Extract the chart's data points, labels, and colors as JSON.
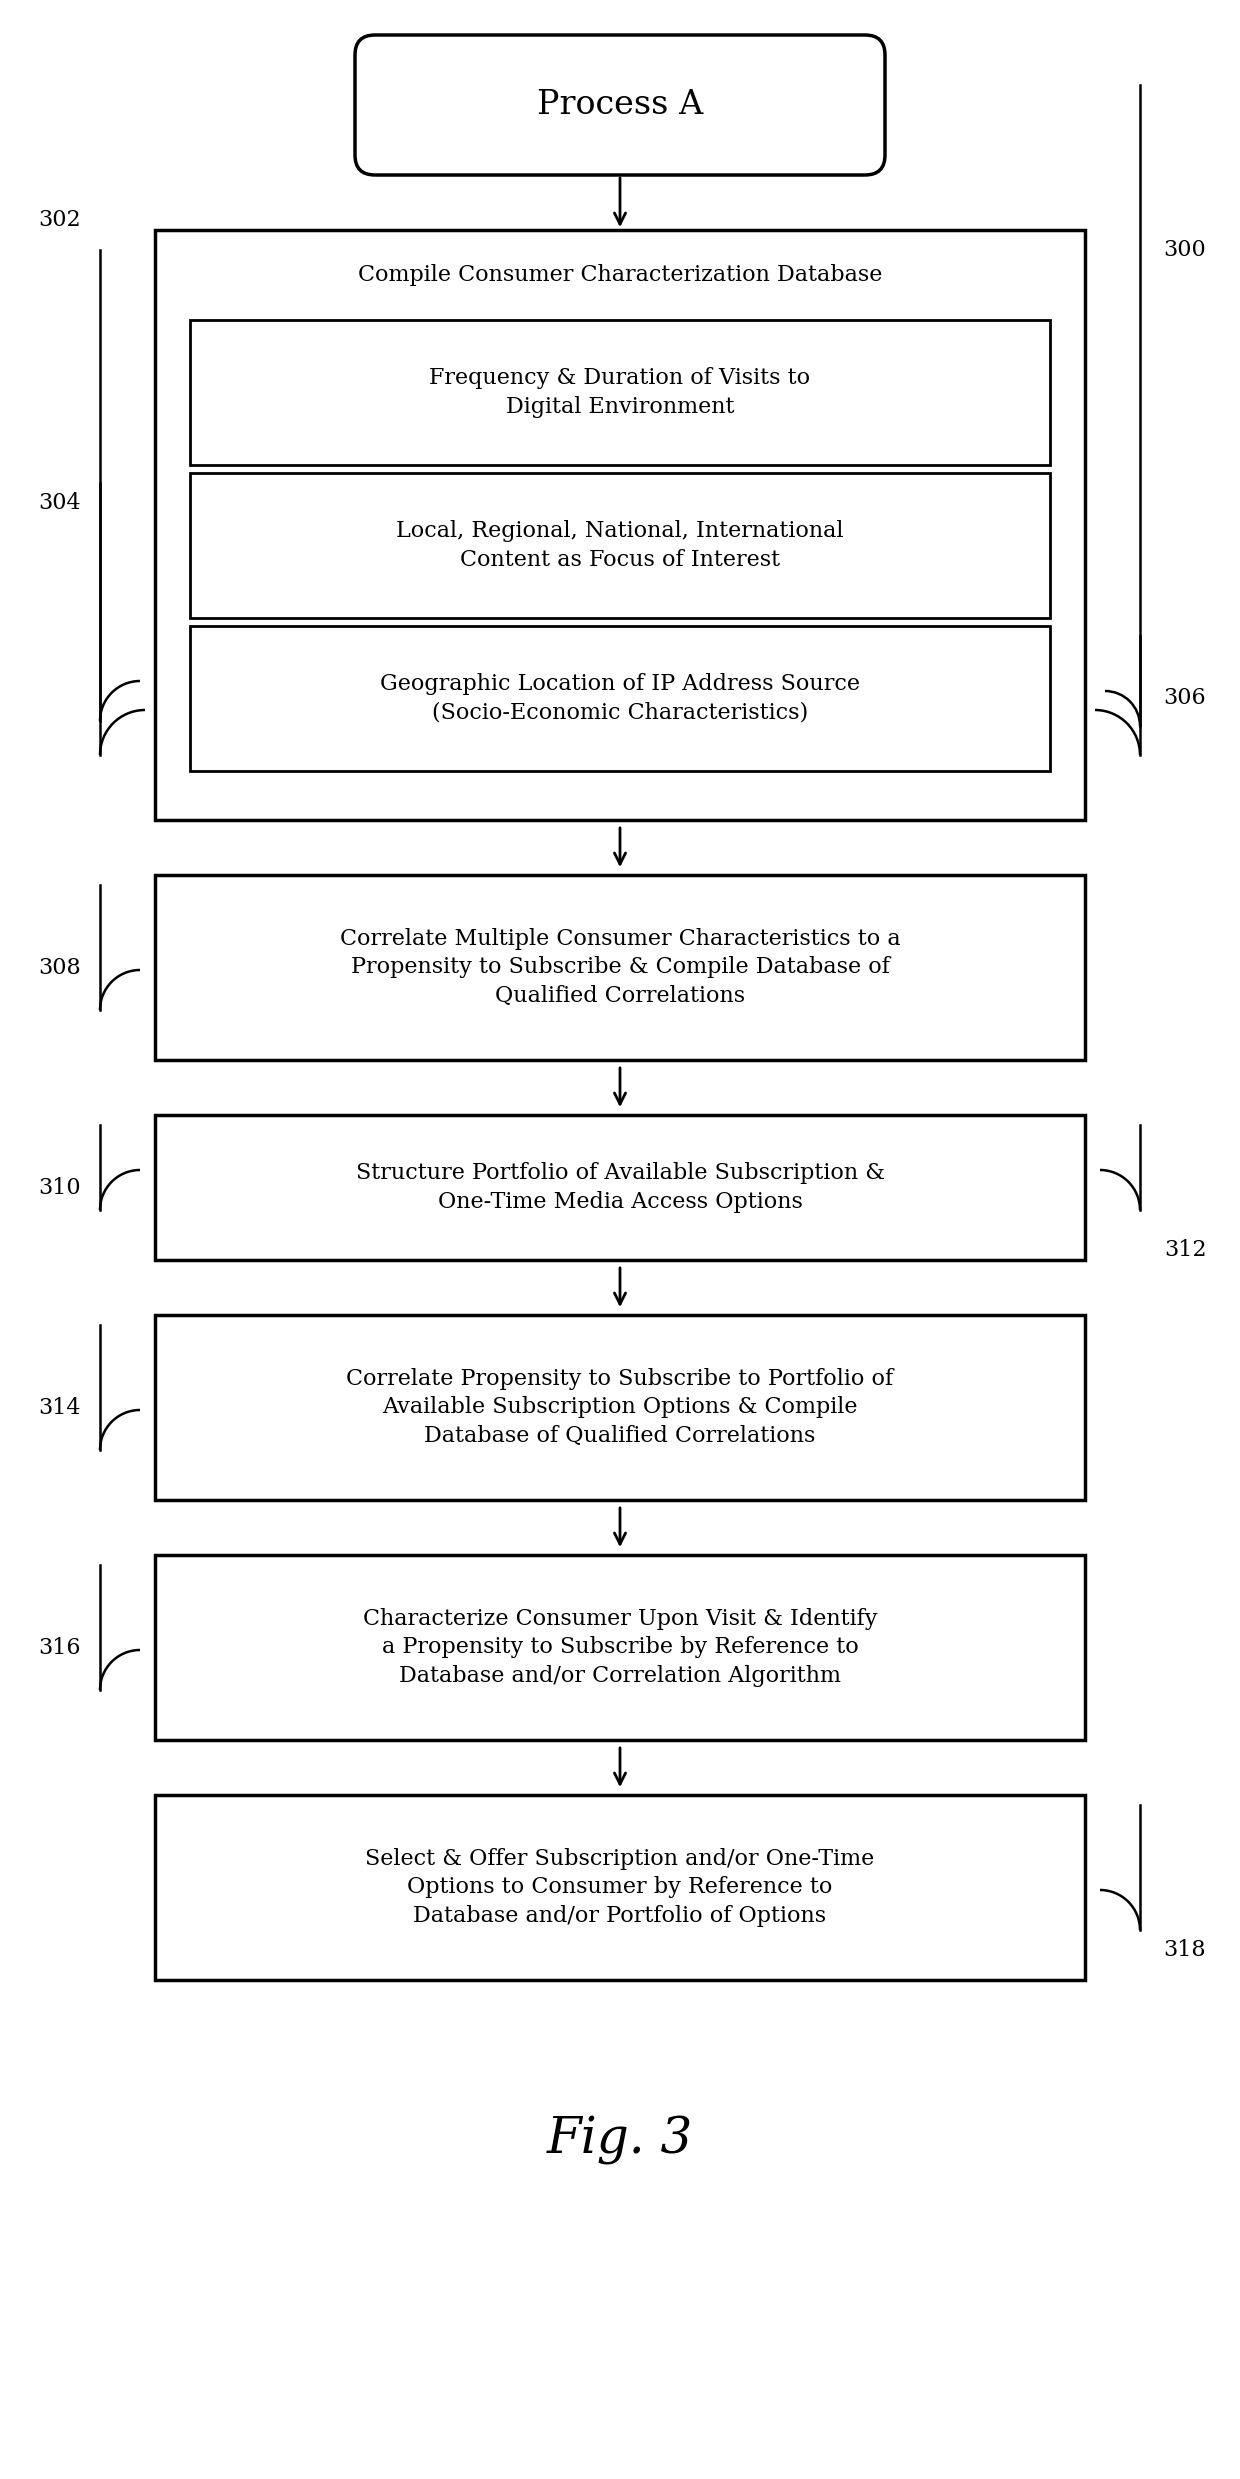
{
  "title": "Fig. 3",
  "bg_color": "#ffffff",
  "process_a_label": "Process A",
  "fig_label": "Fig. 3",
  "compile_header": "Compile Consumer Characterization Database",
  "box1_text": "Frequency & Duration of Visits to\nDigital Environment",
  "box2_text": "Local, Regional, National, International\nContent as Focus of Interest",
  "box3_text": "Geographic Location of IP Address Source\n(Socio-Economic Characteristics)",
  "flow_boxes": [
    "Correlate Multiple Consumer Characteristics to a\nPropensity to Subscribe & Compile Database of\nQualified Correlations",
    "Structure Portfolio of Available Subscription &\nOne-Time Media Access Options",
    "Correlate Propensity to Subscribe to Portfolio of\nAvailable Subscription Options & Compile\nDatabase of Qualified Correlations",
    "Characterize Consumer Upon Visit & Identify\na Propensity to Subscribe by Reference to\nDatabase and/or Correlation Algorithm",
    "Select & Offer Subscription and/or One-Time\nOptions to Consumer by Reference to\nDatabase and/or Portfolio of Options"
  ],
  "ref_labels": [
    "302",
    "300",
    "304",
    "306",
    "308",
    "310",
    "312",
    "314",
    "316",
    "318"
  ],
  "lw_outer": 2.5,
  "lw_inner": 2.0,
  "fontsize_main": 16,
  "fontsize_ref": 16,
  "fontsize_process": 24,
  "fontsize_fig": 36
}
